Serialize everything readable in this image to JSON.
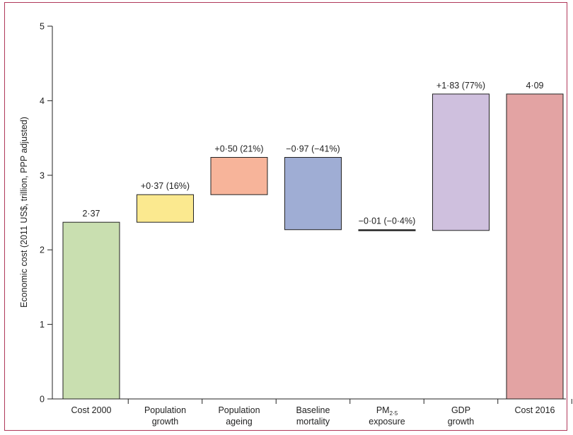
{
  "chart_data": {
    "type": "bar",
    "subtype": "waterfall",
    "ylabel": "Economic cost (2011 US$, trillion, PPP adjusted)",
    "ylim": [
      0,
      5
    ],
    "yticks": [
      "0",
      "1",
      "2",
      "3",
      "4",
      "5"
    ],
    "grid": false,
    "categories": [
      {
        "lines": [
          "Cost 2000"
        ]
      },
      {
        "lines": [
          "Population",
          "growth"
        ]
      },
      {
        "lines": [
          "Population",
          "ageing"
        ]
      },
      {
        "lines": [
          "Baseline",
          "mortality"
        ]
      },
      {
        "lines": [
          "PM",
          "exposure"
        ],
        "sub": "2·5"
      },
      {
        "lines": [
          "GDP",
          "growth"
        ]
      },
      {
        "lines": [
          "Cost 2016"
        ]
      }
    ],
    "bars": [
      {
        "start": 0,
        "end": 2.37,
        "label": "2·37",
        "color": "#c9dfb0"
      },
      {
        "start": 2.37,
        "end": 2.74,
        "label": "+0·37 (16%)",
        "color": "#fbe98f"
      },
      {
        "start": 2.74,
        "end": 3.24,
        "label": "+0·50 (21%)",
        "color": "#f7b49a"
      },
      {
        "start": 3.24,
        "end": 2.27,
        "label": "−0·97 (−41%)",
        "color": "#9fadd4"
      },
      {
        "start": 2.27,
        "end": 2.26,
        "label": "−0·01 (−0·4%)",
        "color": "#222222"
      },
      {
        "start": 2.26,
        "end": 4.09,
        "label": "+1·83 (77%)",
        "color": "#cfc0de"
      },
      {
        "start": 0,
        "end": 4.09,
        "label": "4·09",
        "color": "#e3a3a3"
      }
    ]
  }
}
